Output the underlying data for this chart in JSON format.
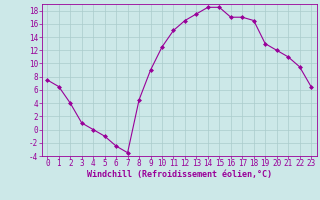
{
  "x": [
    0,
    1,
    2,
    3,
    4,
    5,
    6,
    7,
    8,
    9,
    10,
    11,
    12,
    13,
    14,
    15,
    16,
    17,
    18,
    19,
    20,
    21,
    22,
    23
  ],
  "y": [
    7.5,
    6.5,
    4,
    1,
    0,
    -1,
    -2.5,
    -3.5,
    4.5,
    9,
    12.5,
    15,
    16.5,
    17.5,
    18.5,
    18.5,
    17,
    17,
    16.5,
    13,
    12,
    11,
    9.5,
    6.5
  ],
  "line_color": "#990099",
  "marker": "D",
  "marker_size": 2.0,
  "background_color": "#cce8e8",
  "grid_color": "#aacccc",
  "xlabel": "Windchill (Refroidissement éolien,°C)",
  "xlabel_color": "#990099",
  "tick_color": "#990099",
  "xlim": [
    -0.5,
    23.5
  ],
  "ylim": [
    -4,
    19
  ],
  "yticks": [
    -4,
    -2,
    0,
    2,
    4,
    6,
    8,
    10,
    12,
    14,
    16,
    18
  ],
  "xticks": [
    0,
    1,
    2,
    3,
    4,
    5,
    6,
    7,
    8,
    9,
    10,
    11,
    12,
    13,
    14,
    15,
    16,
    17,
    18,
    19,
    20,
    21,
    22,
    23
  ],
  "tick_fontsize": 5.5,
  "xlabel_fontsize": 6.0,
  "xlabel_fontweight": "bold",
  "linewidth": 0.8
}
